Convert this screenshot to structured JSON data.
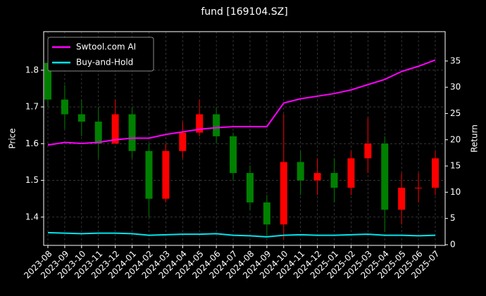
{
  "chart_data": {
    "type": "candlestick",
    "title": "fund [169104.SZ]",
    "ylabel": "Price",
    "y2label": "Return",
    "x": [
      "2023-08",
      "2023-09",
      "2023-10",
      "2023-11",
      "2023-12",
      "2024-01",
      "2024-02",
      "2024-03",
      "2024-04",
      "2024-05",
      "2024-06",
      "2024-07",
      "2024-08",
      "2024-09",
      "2024-10",
      "2024-11",
      "2024-12",
      "2025-01",
      "2025-02",
      "2025-03",
      "2025-04",
      "2025-05",
      "2025-06",
      "2025-07"
    ],
    "open": [
      1.82,
      1.72,
      1.68,
      1.66,
      1.6,
      1.68,
      1.58,
      1.45,
      1.58,
      1.63,
      1.68,
      1.62,
      1.52,
      1.44,
      1.38,
      1.55,
      1.5,
      1.52,
      1.48,
      1.56,
      1.6,
      1.42,
      1.48,
      1.48
    ],
    "high": [
      1.85,
      1.76,
      1.72,
      1.7,
      1.72,
      1.7,
      1.6,
      1.6,
      1.66,
      1.72,
      1.7,
      1.63,
      1.54,
      1.46,
      1.68,
      1.58,
      1.56,
      1.56,
      1.58,
      1.67,
      1.62,
      1.52,
      1.52,
      1.58
    ],
    "low": [
      1.7,
      1.64,
      1.62,
      1.56,
      1.6,
      1.56,
      1.4,
      1.44,
      1.56,
      1.62,
      1.6,
      1.5,
      1.42,
      1.35,
      1.34,
      1.46,
      1.46,
      1.44,
      1.46,
      1.52,
      1.36,
      1.38,
      1.44,
      1.46
    ],
    "close": [
      1.72,
      1.68,
      1.66,
      1.6,
      1.68,
      1.58,
      1.45,
      1.58,
      1.63,
      1.68,
      1.62,
      1.52,
      1.44,
      1.38,
      1.55,
      1.5,
      1.52,
      1.48,
      1.56,
      1.6,
      1.42,
      1.48,
      1.48,
      1.56
    ],
    "up_color": "#ff0000",
    "down_color": "#008000",
    "series": [
      {
        "name": "Swtool.com AI",
        "color": "#ff00ff",
        "axis": "y2",
        "values": [
          19,
          19.5,
          19.3,
          19.5,
          20,
          20.3,
          20.3,
          21,
          21.5,
          22,
          22.3,
          22.5,
          22.5,
          22.5,
          27,
          27.8,
          28.3,
          28.8,
          29.5,
          30.5,
          31.5,
          33,
          34,
          35.2
        ]
      },
      {
        "name": "Buy-and-Hold",
        "color": "#00e5ee",
        "axis": "y2",
        "values": [
          2.3,
          2.2,
          2.1,
          2.2,
          2.2,
          2.1,
          1.8,
          1.9,
          2.0,
          2.0,
          2.1,
          1.8,
          1.7,
          1.5,
          1.8,
          1.9,
          1.8,
          1.8,
          1.9,
          2.0,
          1.8,
          1.8,
          1.7,
          1.8
        ]
      }
    ],
    "ylim": [
      1.323,
      1.905
    ],
    "yticks": [
      1.4,
      1.5,
      1.6,
      1.7,
      1.8
    ],
    "y2lim": [
      -0.13,
      40.6
    ],
    "y2ticks": [
      0,
      5,
      10,
      15,
      20,
      25,
      30,
      35
    ],
    "grid": true,
    "legend": "upper left"
  }
}
